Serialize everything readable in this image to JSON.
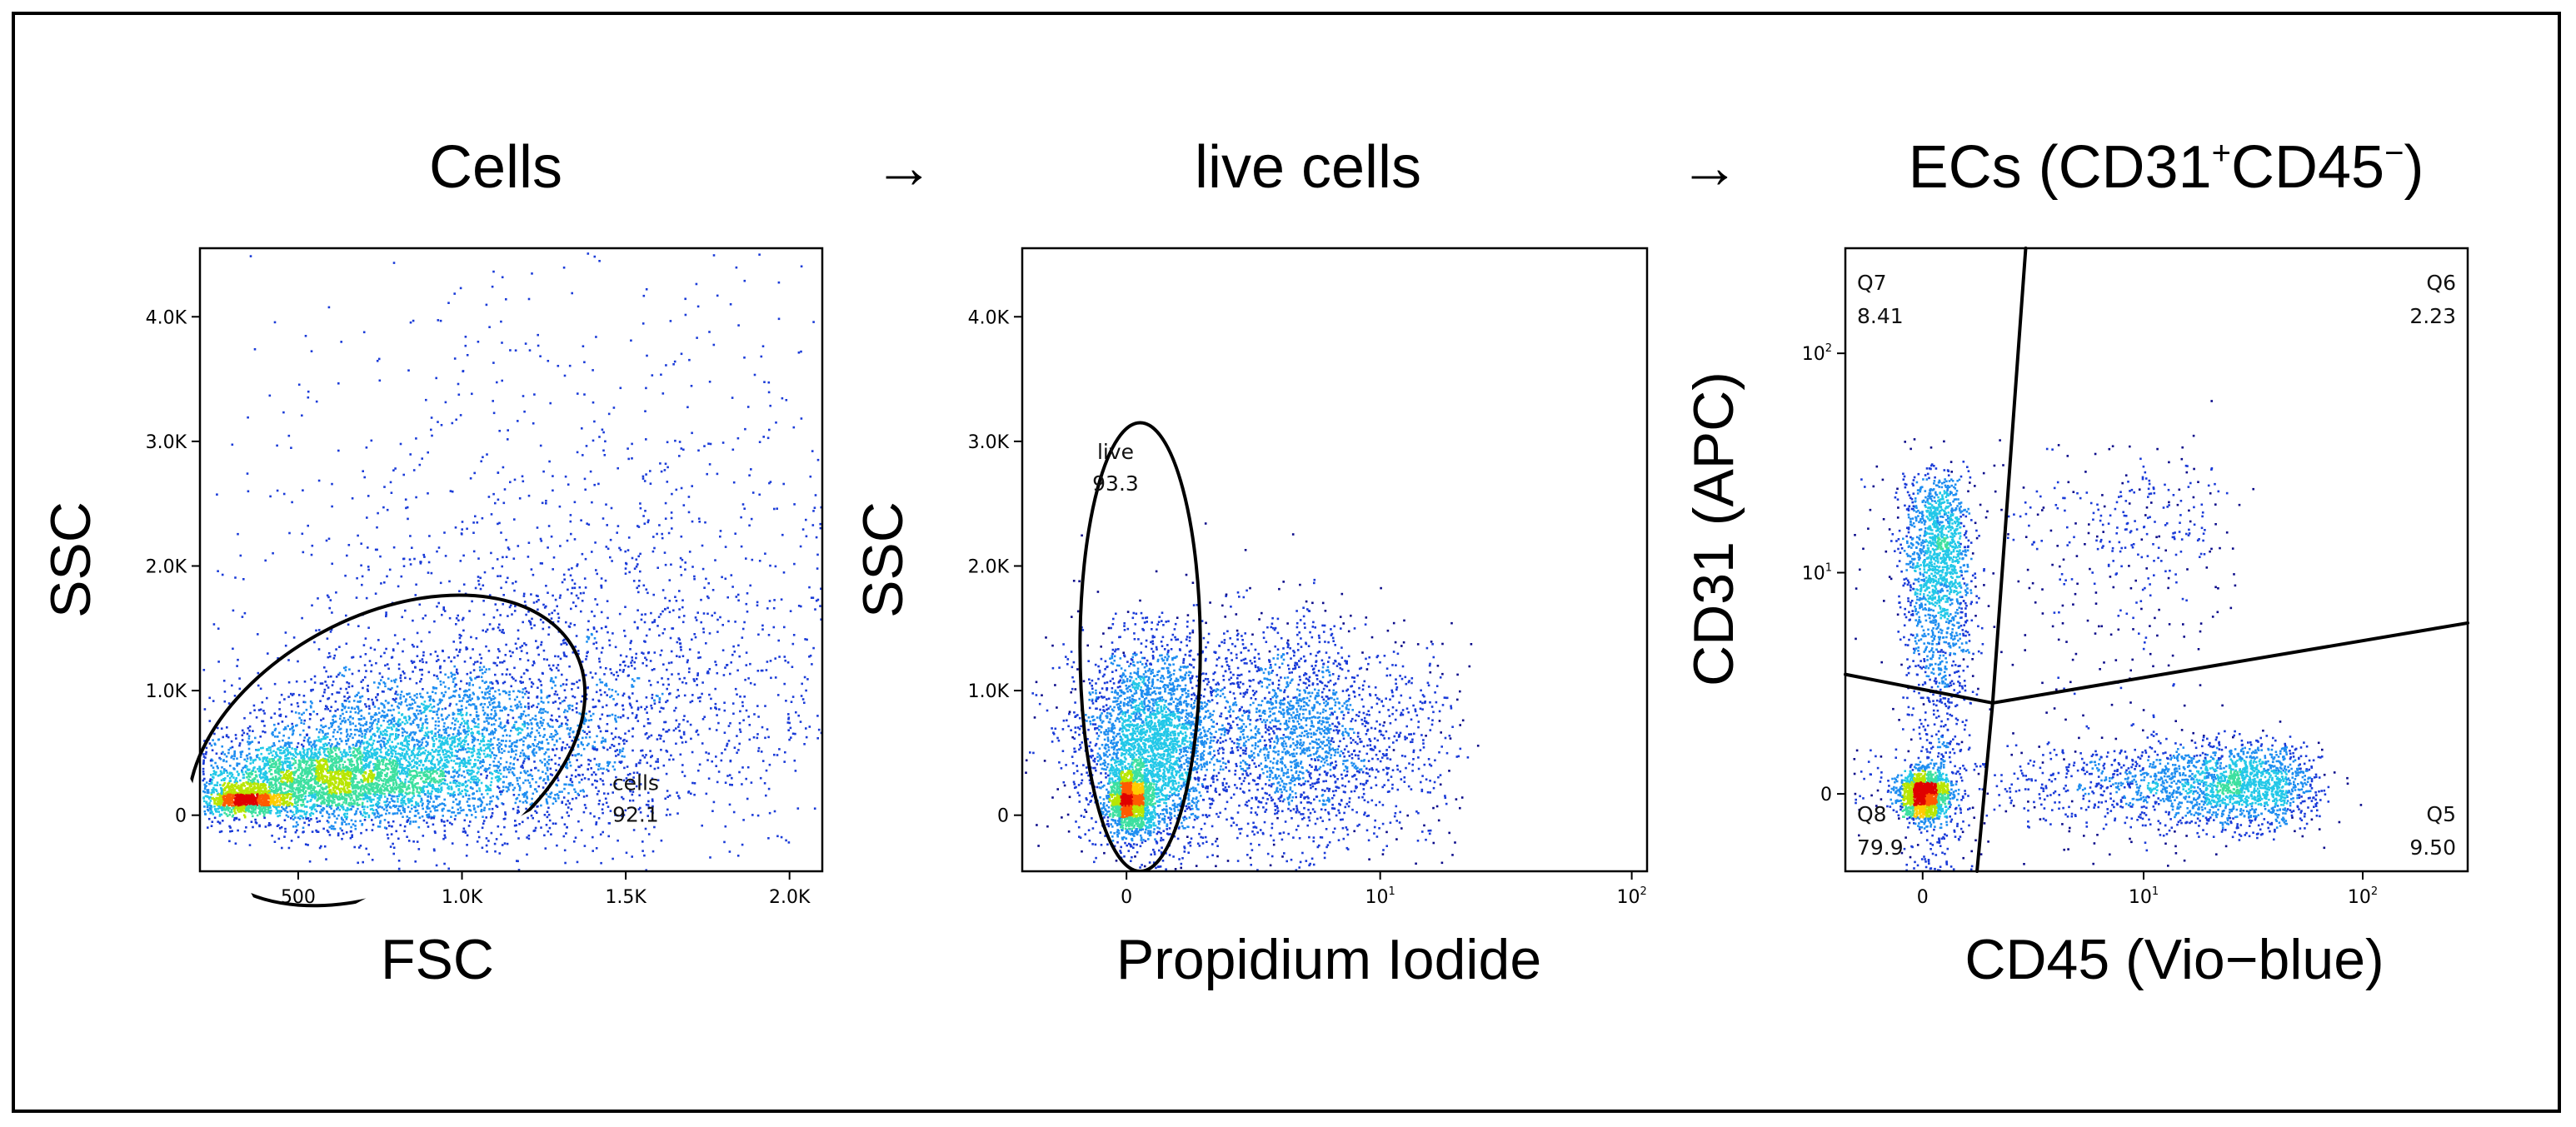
{
  "colors": {
    "density_scale": [
      "#0a0a8a",
      "#1a3bd8",
      "#1f8ef0",
      "#22c8e8",
      "#3de0a0",
      "#b8e600",
      "#ffcc00",
      "#ff5a00",
      "#e00000"
    ],
    "axis": "#000000",
    "gate": "#000000"
  },
  "arrows": [
    "→",
    "→"
  ],
  "chart_data": [
    {
      "type": "scatter",
      "subtype": "flow-cytometry-density-dot-plot",
      "title": "Cells",
      "xlabel": "FSC",
      "ylabel": "SSC",
      "x_scale": "linear",
      "y_scale": "linear",
      "xlim": [
        200,
        2100
      ],
      "ylim": [
        -450,
        4550
      ],
      "x_ticks": [
        {
          "v": 500,
          "label": "500"
        },
        {
          "v": 1000,
          "label": "1.0K"
        },
        {
          "v": 1500,
          "label": "1.5K"
        },
        {
          "v": 2000,
          "label": "2.0K"
        }
      ],
      "y_ticks": [
        {
          "v": 0,
          "label": "0"
        },
        {
          "v": 1000,
          "label": "1.0K"
        },
        {
          "v": 2000,
          "label": "2.0K"
        },
        {
          "v": 3000,
          "label": "3.0K"
        },
        {
          "v": 4000,
          "label": "4.0K"
        }
      ],
      "populations": [
        {
          "cx": 330,
          "cy": 130,
          "sx": 70,
          "sy": 55,
          "n": 900
        },
        {
          "cx": 560,
          "cy": 280,
          "sx": 200,
          "sy": 170,
          "n": 2600
        },
        {
          "cx": 900,
          "cy": 520,
          "sx": 280,
          "sy": 320,
          "n": 2600
        },
        {
          "cx": 1300,
          "cy": 900,
          "sx": 400,
          "sy": 650,
          "n": 1600
        },
        {
          "cx": 1400,
          "cy": 2200,
          "sx": 600,
          "sy": 1200,
          "n": 900
        }
      ],
      "gates": [
        {
          "name": "cells",
          "shape": "ellipse",
          "cx": 770,
          "cy": 520,
          "rx": 650,
          "ry": 1080,
          "angle_deg": 28,
          "label": "cells",
          "value": "92.1",
          "label_x": 1530,
          "label_y": 80
        }
      ]
    },
    {
      "type": "scatter",
      "subtype": "flow-cytometry-density-dot-plot",
      "title": "live cells",
      "xlabel": "Propidium Iodide",
      "ylabel": "SSC",
      "x_scale": "biexponential",
      "y_scale": "linear",
      "xlim": [
        -2.2,
        115
      ],
      "ylim": [
        -450,
        4550
      ],
      "x_ticks": [
        {
          "v": 0,
          "label": "0"
        },
        {
          "v": 10,
          "label": "10",
          "sup": "1"
        },
        {
          "v": 100,
          "label": "10",
          "sup": "2"
        }
      ],
      "y_ticks": [
        {
          "v": 0,
          "label": "0"
        },
        {
          "v": 1000,
          "label": "1.0K"
        },
        {
          "v": 2000,
          "label": "2.0K"
        },
        {
          "v": 3000,
          "label": "3.0K"
        },
        {
          "v": 4000,
          "label": "4.0K"
        }
      ],
      "populations": [
        {
          "cx": 0.05,
          "cy": 130,
          "sx": 0.18,
          "sy": 110,
          "n": 1300
        },
        {
          "cx": 0.4,
          "cy": 550,
          "sx": 0.6,
          "sy": 420,
          "n": 2600
        },
        {
          "cx": 3.5,
          "cy": 650,
          "sx": 2.2,
          "sy": 450,
          "n": 1900
        },
        {
          "cx": 8,
          "cy": 600,
          "sx": 6,
          "sy": 450,
          "n": 700
        }
      ],
      "gates": [
        {
          "name": "live",
          "shape": "ellipse",
          "cx": 0.25,
          "cy": 1350,
          "rx": 1.2,
          "ry": 1800,
          "angle_deg": 0,
          "label": "live",
          "value": "93.3",
          "label_x": -0.2,
          "label_y": 2740
        }
      ]
    },
    {
      "type": "scatter",
      "subtype": "flow-cytometry-quadrant-density-plot",
      "title": "ECs (CD31",
      "title_sup1": "+",
      "title_mid": "CD45",
      "title_sup2": "−",
      "title_end": ")",
      "xlabel": "CD45 (Vio−blue)",
      "ylabel": "CD31 (APC)",
      "x_scale": "biexponential",
      "y_scale": "biexponential",
      "xlim": [
        -1.8,
        300
      ],
      "ylim": [
        -1.8,
        300
      ],
      "x_ticks": [
        {
          "v": 0,
          "label": "0"
        },
        {
          "v": 10,
          "label": "10",
          "sup": "1"
        },
        {
          "v": 100,
          "label": "10",
          "sup": "2"
        }
      ],
      "y_ticks": [
        {
          "v": 0,
          "label": "0"
        },
        {
          "v": 10,
          "label": "10",
          "sup": "1"
        },
        {
          "v": 100,
          "label": "10",
          "sup": "2"
        }
      ],
      "populations": [
        {
          "cx": 0.0,
          "cy": 0.0,
          "sx": 0.25,
          "sy": 0.25,
          "n": 1400
        },
        {
          "cx": 0.3,
          "cy": 8,
          "sx": 0.35,
          "sy": 9,
          "n": 2100
        },
        {
          "cx": 20,
          "cy": 0.2,
          "sx": 18,
          "sy": 0.45,
          "n": 2400
        },
        {
          "cx": 5,
          "cy": 10,
          "sx": 8,
          "sy": 12,
          "n": 700
        }
      ],
      "quadrant_lines": [
        {
          "from": [
            -1.8,
            3.2
          ],
          "to": [
            1.6,
            2.2
          ]
        },
        {
          "from": [
            1.6,
            2.2
          ],
          "to": [
            300,
            5.8
          ]
        },
        {
          "from": [
            2.6,
            300
          ],
          "to": [
            1.6,
            2.2
          ]
        },
        {
          "from": [
            1.6,
            2.2
          ],
          "to": [
            1.2,
            -1.8
          ]
        }
      ],
      "quadrants": [
        {
          "name": "Q7",
          "value": "8.41",
          "pos": "top-left"
        },
        {
          "name": "Q6",
          "value": "2.23",
          "pos": "top-right"
        },
        {
          "name": "Q8",
          "value": "79.9",
          "pos": "bottom-left"
        },
        {
          "name": "Q5",
          "value": "9.50",
          "pos": "bottom-right"
        }
      ]
    }
  ]
}
